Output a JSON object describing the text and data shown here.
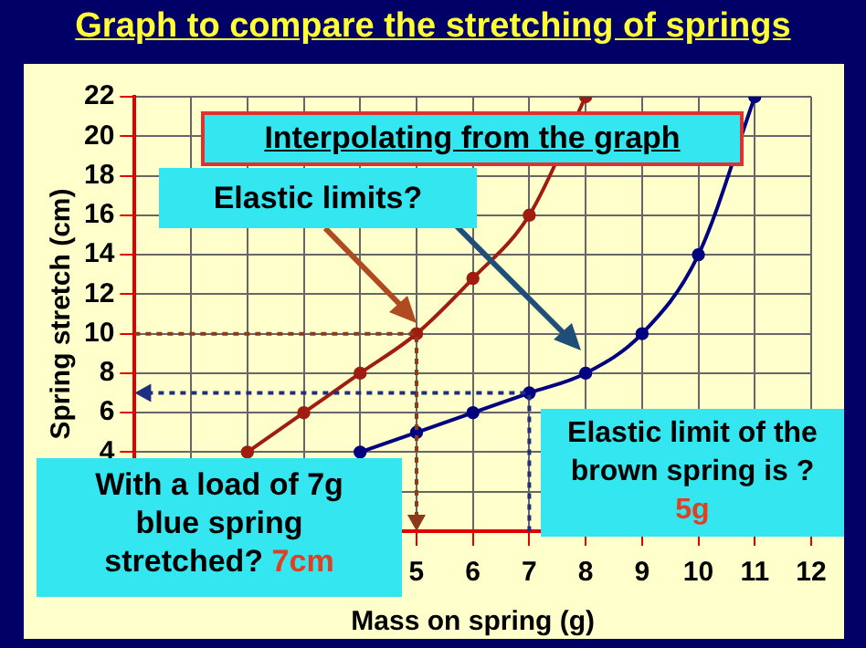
{
  "chart_data": {
    "type": "line",
    "title": "Graph to compare the stretching of springs",
    "xlabel": "Mass on spring (g)",
    "ylabel": "Spring stretch (cm)",
    "xlim": [
      0,
      12
    ],
    "ylim": [
      0,
      22
    ],
    "xticks": [
      {
        "value": 0,
        "label": null
      },
      {
        "value": 1,
        "label": null
      },
      {
        "value": 2,
        "label": null
      },
      {
        "value": 3,
        "label": null
      },
      {
        "value": 4,
        "label": null
      },
      5,
      6,
      7,
      8,
      9,
      10,
      11,
      12
    ],
    "yticks": [
      {
        "value": 0,
        "label": null
      },
      {
        "value": 2,
        "label": null
      },
      4,
      6,
      8,
      10,
      12,
      14,
      16,
      18,
      20,
      22
    ],
    "grid": true,
    "marker": "circle",
    "series": [
      {
        "color": "#a01c10",
        "x": [
          2,
          3,
          4,
          5,
          6,
          7,
          8
        ],
        "values": [
          4,
          6,
          8,
          10,
          12.8,
          16,
          22
        ]
      },
      {
        "color": "#000080",
        "x": [
          4,
          5,
          6,
          7,
          8,
          9,
          10,
          11
        ],
        "values": [
          4,
          5,
          6,
          7,
          8,
          10,
          14,
          22
        ]
      }
    ],
    "annotations": [
      "Interpolating from the graph",
      "Elastic limits?",
      "With a load of 7g blue spring stretched? 7cm",
      "Elastic limit of the brown spring is ? 5g"
    ]
  }
}
